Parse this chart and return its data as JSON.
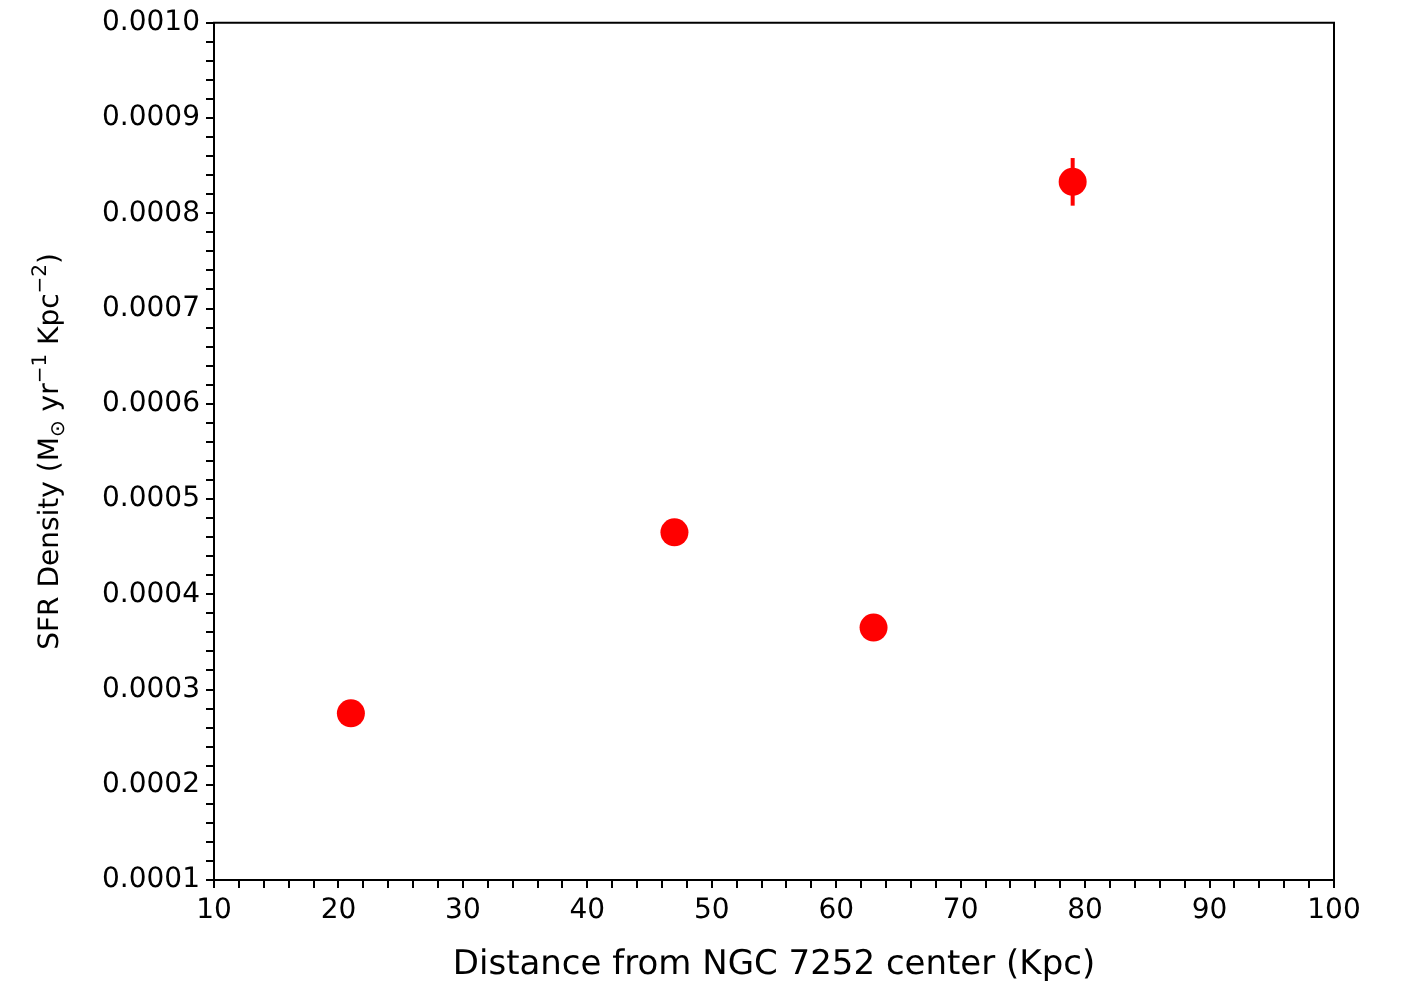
{
  "chart_data": {
    "type": "scatter",
    "xlabel": "Distance from NGC 7252 center (Kpc)",
    "ylabel": "SFR Density (M$_{⊙}$ yr$^{−1}$ Kpc$^{−2}$)",
    "x": [
      21,
      47,
      63,
      79
    ],
    "series": [
      {
        "color": "#ff0000",
        "values": [
          0.000275,
          0.000465,
          0.000365,
          0.000833
        ],
        "errors": [
          null,
          null,
          null,
          2.5e-05
        ]
      }
    ],
    "marker": "circle",
    "grid": false,
    "legend": false,
    "xlim": [
      10,
      100
    ],
    "ylim": [
      0.0001,
      0.001
    ],
    "xticks": [
      10,
      {
        "value": 12,
        "label": null
      },
      {
        "value": 14,
        "label": null
      },
      {
        "value": 16,
        "label": null
      },
      {
        "value": 18,
        "label": null
      },
      20,
      {
        "value": 22,
        "label": null
      },
      {
        "value": 24,
        "label": null
      },
      {
        "value": 26,
        "label": null
      },
      {
        "value": 28,
        "label": null
      },
      30,
      {
        "value": 32,
        "label": null
      },
      {
        "value": 34,
        "label": null
      },
      {
        "value": 36,
        "label": null
      },
      {
        "value": 38,
        "label": null
      },
      40,
      {
        "value": 42,
        "label": null
      },
      {
        "value": 44,
        "label": null
      },
      {
        "value": 46,
        "label": null
      },
      {
        "value": 48,
        "label": null
      },
      50,
      {
        "value": 52,
        "label": null
      },
      {
        "value": 54,
        "label": null
      },
      {
        "value": 56,
        "label": null
      },
      {
        "value": 58,
        "label": null
      },
      60,
      {
        "value": 62,
        "label": null
      },
      {
        "value": 64,
        "label": null
      },
      {
        "value": 66,
        "label": null
      },
      {
        "value": 68,
        "label": null
      },
      70,
      {
        "value": 72,
        "label": null
      },
      {
        "value": 74,
        "label": null
      },
      {
        "value": 76,
        "label": null
      },
      {
        "value": 78,
        "label": null
      },
      80,
      {
        "value": 82,
        "label": null
      },
      {
        "value": 84,
        "label": null
      },
      {
        "value": 86,
        "label": null
      },
      {
        "value": 88,
        "label": null
      },
      90,
      {
        "value": 92,
        "label": null
      },
      {
        "value": 94,
        "label": null
      },
      {
        "value": 96,
        "label": null
      },
      {
        "value": 98,
        "label": null
      },
      100
    ],
    "yticks": [
      0.0001,
      {
        "value": 0.00012,
        "label": null
      },
      {
        "value": 0.00014,
        "label": null
      },
      {
        "value": 0.00016,
        "label": null
      },
      {
        "value": 0.00018,
        "label": null
      },
      0.0002,
      {
        "value": 0.00022,
        "label": null
      },
      {
        "value": 0.00024,
        "label": null
      },
      {
        "value": 0.00026,
        "label": null
      },
      {
        "value": 0.00028,
        "label": null
      },
      0.0003,
      {
        "value": 0.00032,
        "label": null
      },
      {
        "value": 0.00034,
        "label": null
      },
      {
        "value": 0.00036,
        "label": null
      },
      {
        "value": 0.00038,
        "label": null
      },
      0.0004,
      {
        "value": 0.00042,
        "label": null
      },
      {
        "value": 0.00044,
        "label": null
      },
      {
        "value": 0.00046,
        "label": null
      },
      {
        "value": 0.00048,
        "label": null
      },
      0.0005,
      {
        "value": 0.00052,
        "label": null
      },
      {
        "value": 0.00054,
        "label": null
      },
      {
        "value": 0.00056,
        "label": null
      },
      {
        "value": 0.00058,
        "label": null
      },
      0.0006,
      {
        "value": 0.00062,
        "label": null
      },
      {
        "value": 0.00064,
        "label": null
      },
      {
        "value": 0.00066,
        "label": null
      },
      {
        "value": 0.00068,
        "label": null
      },
      0.0007,
      {
        "value": 0.00072,
        "label": null
      },
      {
        "value": 0.00074,
        "label": null
      },
      {
        "value": 0.00076,
        "label": null
      },
      {
        "value": 0.00078,
        "label": null
      },
      0.0008,
      {
        "value": 0.00082,
        "label": null
      },
      {
        "value": 0.00084,
        "label": null
      },
      {
        "value": 0.00086,
        "label": null
      },
      {
        "value": 0.00088,
        "label": null
      },
      0.0009,
      {
        "value": 0.00092,
        "label": null
      },
      {
        "value": 0.00094,
        "label": null
      },
      {
        "value": 0.00096,
        "label": null
      },
      {
        "value": 0.00098,
        "label": null
      },
      {
        "value": 0.001,
        "label": "0.0010"
      }
    ]
  }
}
